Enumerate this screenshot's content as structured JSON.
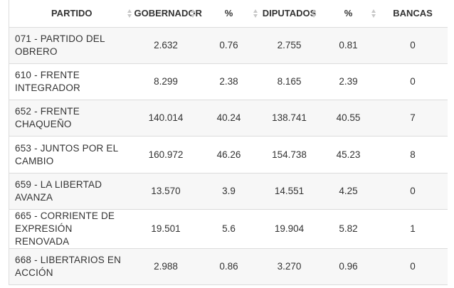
{
  "table": {
    "headers": [
      {
        "key": "partido",
        "label": "PARTIDO"
      },
      {
        "key": "gobernador",
        "label": "GOBERNADOR"
      },
      {
        "key": "pct_gobernador",
        "label": "%"
      },
      {
        "key": "diputados",
        "label": "DIPUTADOS"
      },
      {
        "key": "pct_diputados",
        "label": "%"
      },
      {
        "key": "bancas",
        "label": "BANCAS"
      }
    ],
    "rows": [
      {
        "partido": "071 - PARTIDO DEL OBRERO",
        "gobernador": "2.632",
        "pct_gobernador": "0.76",
        "diputados": "2.755",
        "pct_diputados": "0.81",
        "bancas": "0"
      },
      {
        "partido": "610 - FRENTE INTEGRADOR",
        "gobernador": "8.299",
        "pct_gobernador": "2.38",
        "diputados": "8.165",
        "pct_diputados": "2.39",
        "bancas": "0"
      },
      {
        "partido": "652 - FRENTE CHAQUEÑO",
        "gobernador": "140.014",
        "pct_gobernador": "40.24",
        "diputados": "138.741",
        "pct_diputados": "40.55",
        "bancas": "7"
      },
      {
        "partido": "653 - JUNTOS POR EL CAMBIO",
        "gobernador": "160.972",
        "pct_gobernador": "46.26",
        "diputados": "154.738",
        "pct_diputados": "45.23",
        "bancas": "8"
      },
      {
        "partido": "659 - LA LIBERTAD AVANZA",
        "gobernador": "13.570",
        "pct_gobernador": "3.9",
        "diputados": "14.551",
        "pct_diputados": "4.25",
        "bancas": "0"
      },
      {
        "partido": "665 - CORRIENTE DE EXPRESIÓN RENOVADA",
        "gobernador": "19.501",
        "pct_gobernador": "5.6",
        "diputados": "19.904",
        "pct_diputados": "5.82",
        "bancas": "1"
      },
      {
        "partido": "668 - LIBERTARIOS EN ACCIÓN",
        "gobernador": "2.988",
        "pct_gobernador": "0.86",
        "diputados": "3.270",
        "pct_diputados": "0.96",
        "bancas": "0"
      }
    ]
  },
  "icons": {
    "sort": "sort-icon"
  },
  "colors": {
    "text": "#333333",
    "row_alt": "#f7f7f7",
    "border": "#dcdcdc",
    "sort_icon": "#c8c8c8"
  }
}
